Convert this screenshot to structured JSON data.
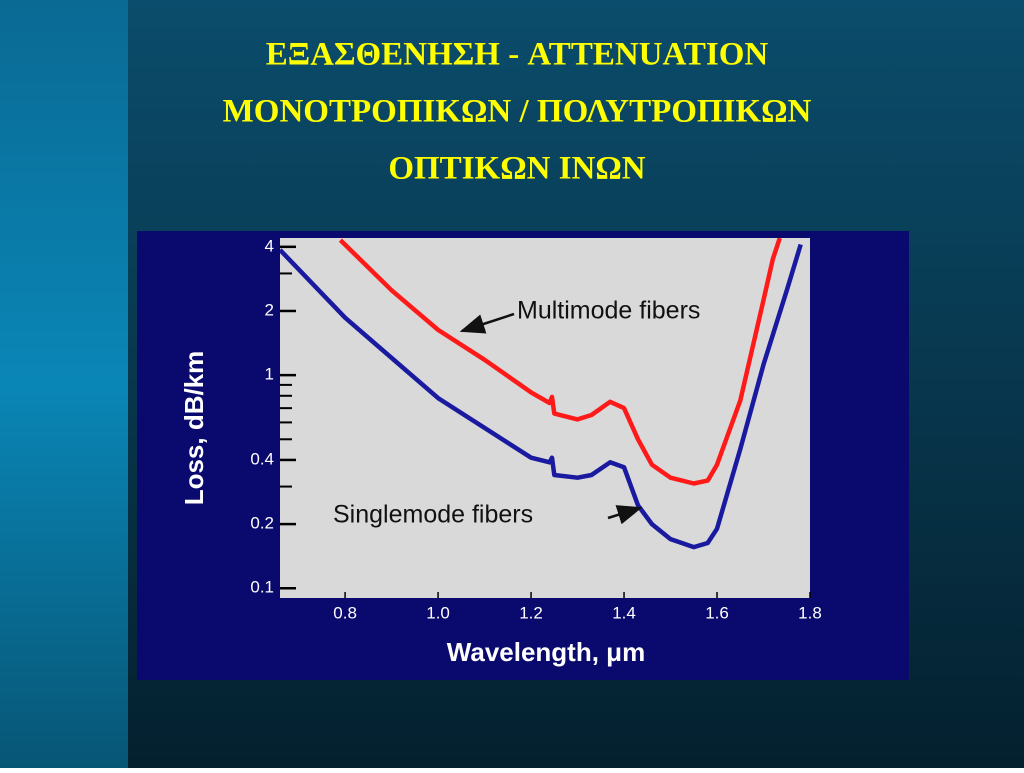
{
  "slide": {
    "title": [
      "ΕΞΑΣΘΕΝΗΣΗ  -  ATTENUATION",
      "ΜΟΝΟΤΡΟΠΙΚΩΝ / ΠΟΛΥΤΡΟΠΙΚΩΝ",
      "ΟΠΤΙΚΩΝ  ΙΝΩΝ"
    ]
  },
  "chart_data": {
    "type": "line",
    "x_label": "Wavelength, μm",
    "y_label": "Loss, dB/km",
    "xlim": [
      0.66,
      1.8
    ],
    "xticks": [
      0.8,
      {
        "value": 1,
        "label": "1.0"
      },
      1.2,
      1.4,
      1.6,
      1.8
    ],
    "ylim": [
      0.09,
      4.4
    ],
    "log_y": true,
    "yticks": [
      0.1,
      0.2,
      0.4,
      1,
      2,
      4
    ],
    "minor_yticks": [
      0.3,
      0.5,
      0.6,
      0.7,
      0.8,
      0.9,
      3
    ],
    "grid": false,
    "series": [
      {
        "name": "Multimode fibers",
        "color": "#ff1a1a",
        "x": [
          0.79,
          0.9,
          1.0,
          1.1,
          1.2,
          1.24,
          1.245,
          1.25,
          1.3,
          1.33,
          1.37,
          1.4,
          1.43,
          1.46,
          1.5,
          1.55,
          1.58,
          1.6,
          1.65,
          1.7,
          1.72,
          1.735
        ],
        "values": [
          4.3,
          2.5,
          1.63,
          1.18,
          0.83,
          0.74,
          0.79,
          0.66,
          0.62,
          0.65,
          0.75,
          0.7,
          0.5,
          0.38,
          0.33,
          0.31,
          0.32,
          0.38,
          0.76,
          2.25,
          3.5,
          4.4
        ]
      },
      {
        "name": "Singlemode fibers",
        "color": "#1a1aa0",
        "x": [
          0.66,
          0.8,
          1.0,
          1.2,
          1.24,
          1.245,
          1.25,
          1.3,
          1.33,
          1.37,
          1.4,
          1.43,
          1.46,
          1.5,
          1.55,
          1.58,
          1.6,
          1.65,
          1.7,
          1.75,
          1.78
        ],
        "values": [
          3.87,
          1.86,
          0.78,
          0.41,
          0.39,
          0.41,
          0.34,
          0.33,
          0.34,
          0.39,
          0.37,
          0.245,
          0.2,
          0.17,
          0.156,
          0.163,
          0.19,
          0.45,
          1.12,
          2.5,
          4.1
        ]
      }
    ]
  }
}
